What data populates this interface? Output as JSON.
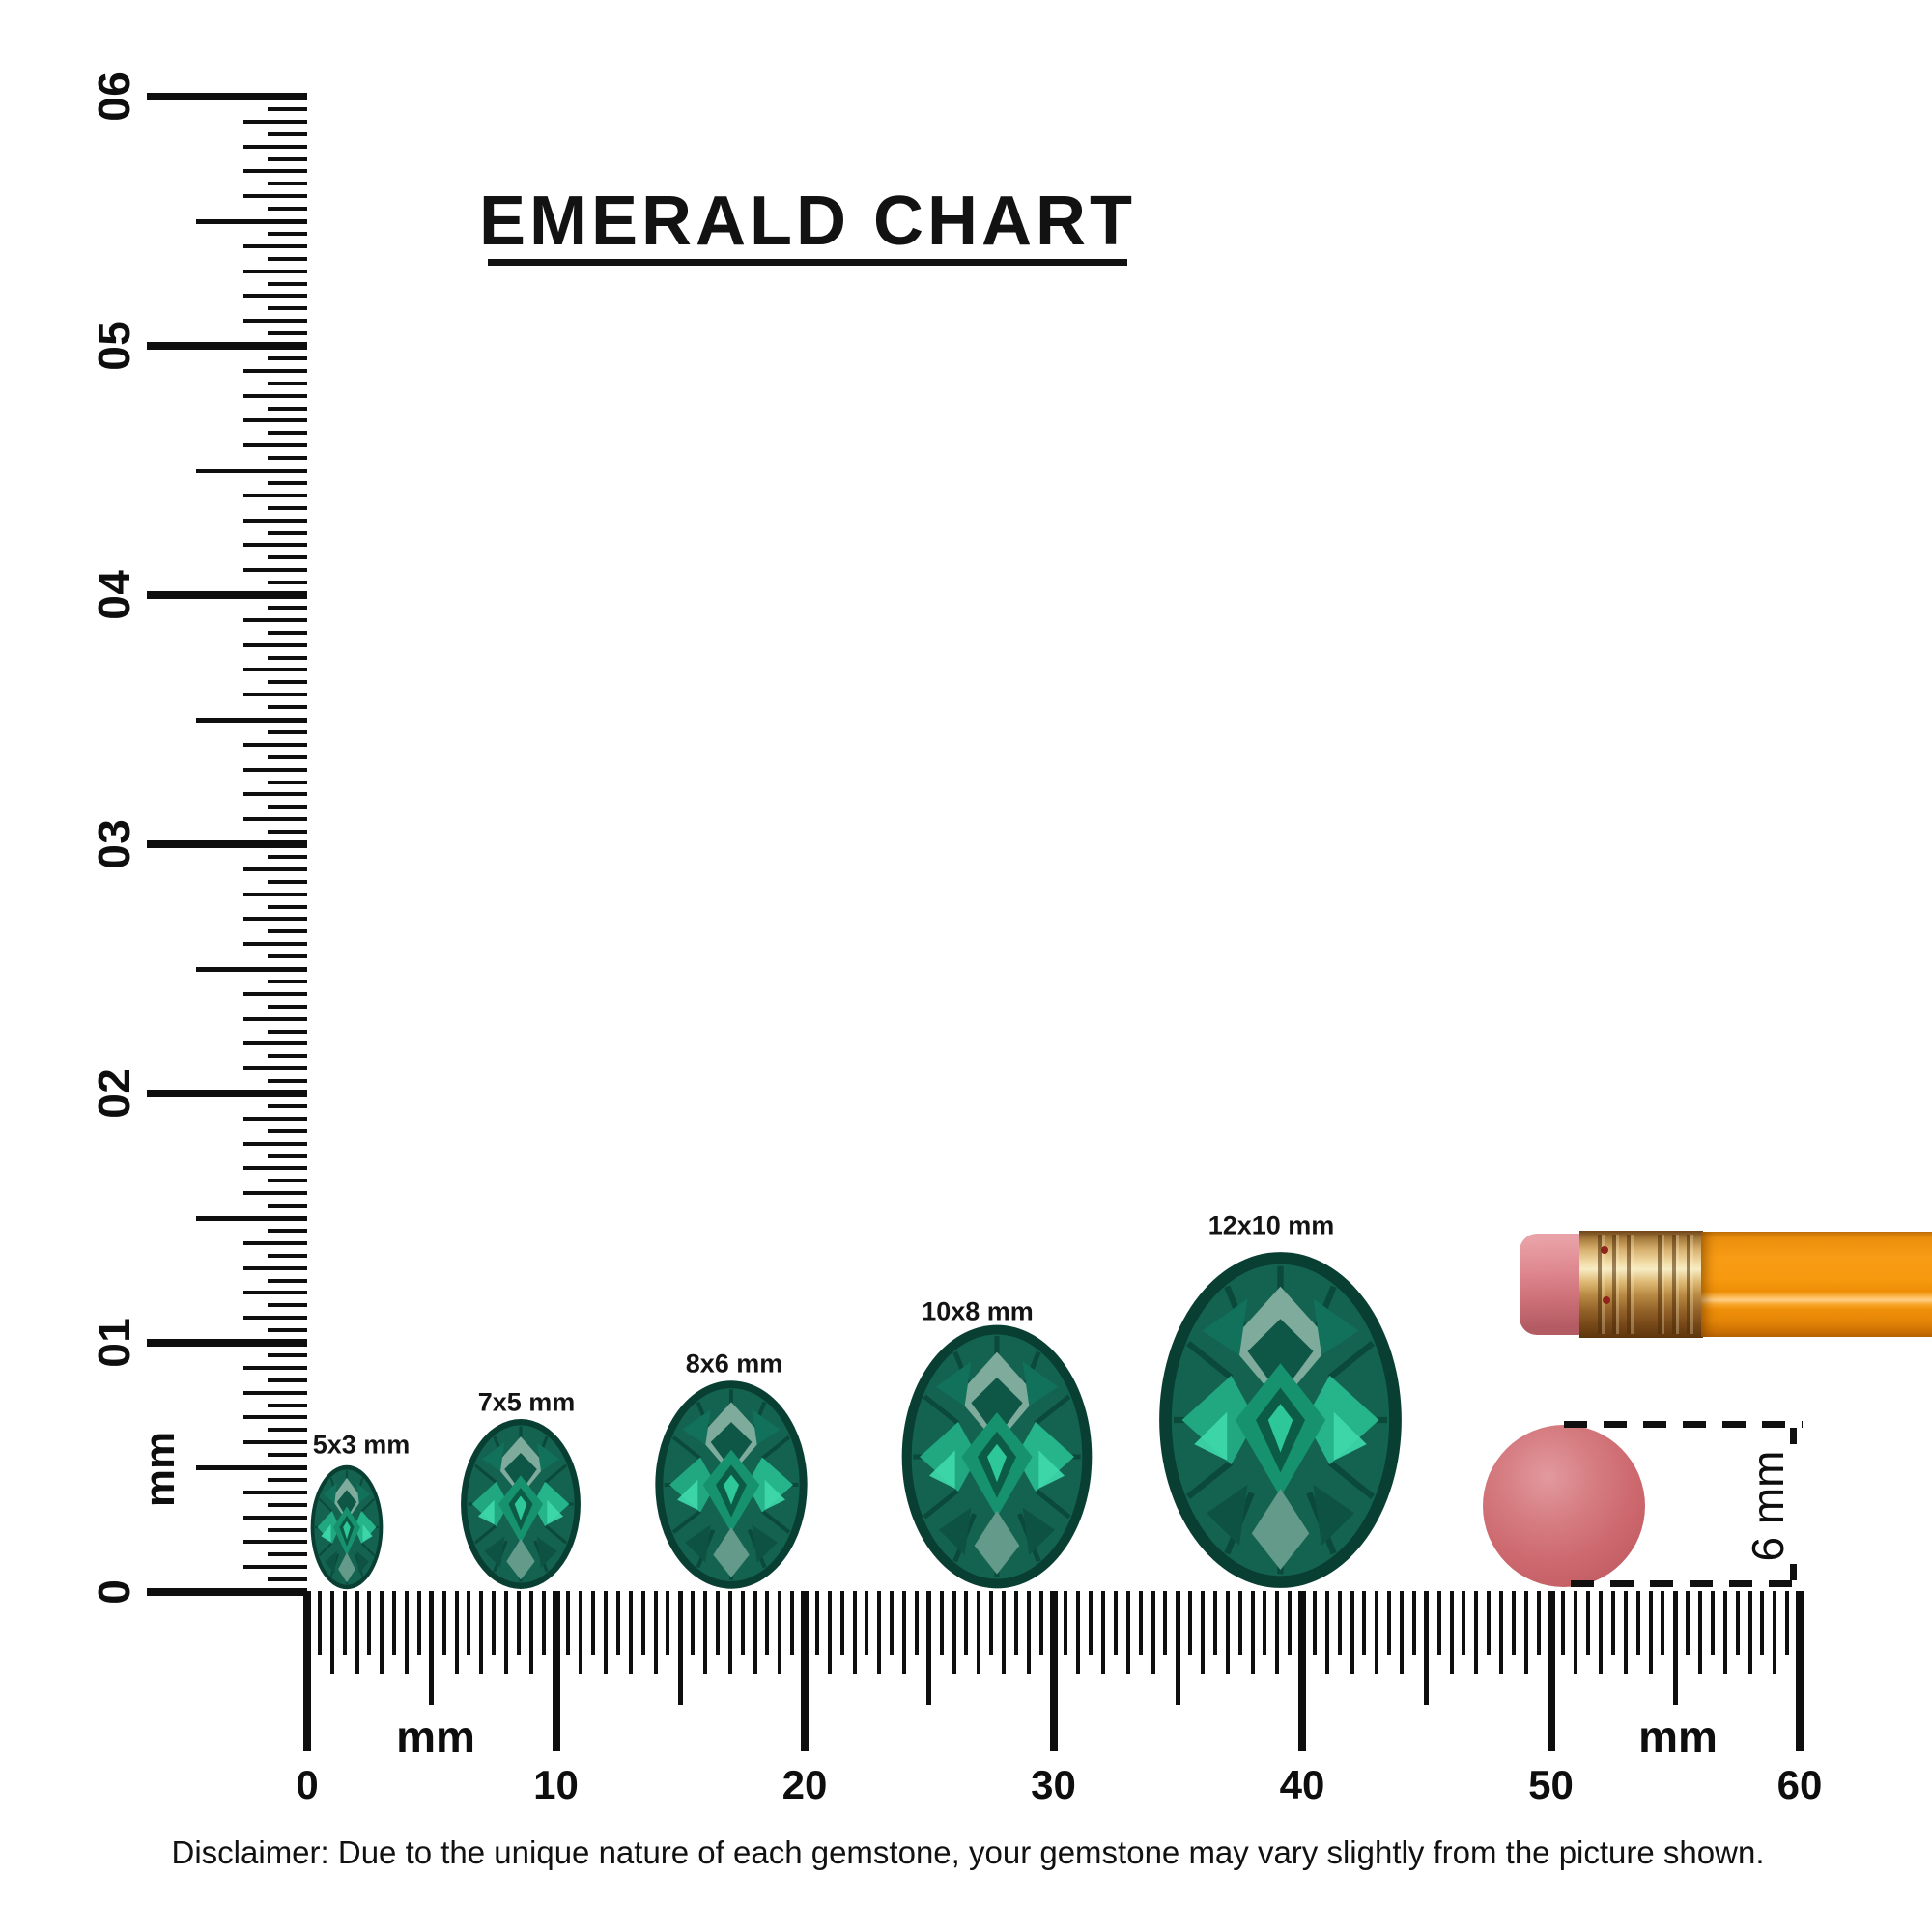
{
  "title": "EMERALD CHART",
  "rulers": {
    "unit": "mm",
    "vertical": {
      "tick_labels": [
        "60",
        "50",
        "40",
        "30",
        "20",
        "10",
        "0"
      ],
      "unit_label": "mm",
      "range_mm": [
        0,
        60
      ]
    },
    "horizontal": {
      "tick_labels": [
        "0",
        "10",
        "20",
        "30",
        "40",
        "50",
        "60"
      ],
      "unit_label_left": "mm",
      "unit_label_right": "mm",
      "range_mm": [
        0,
        60
      ]
    }
  },
  "gems": [
    {
      "size_label": "5x3 mm",
      "length_mm": 5,
      "width_mm": 3
    },
    {
      "size_label": "7x5 mm",
      "length_mm": 7,
      "width_mm": 5
    },
    {
      "size_label": "8x6 mm",
      "length_mm": 8,
      "width_mm": 6
    },
    {
      "size_label": "10x8 mm",
      "length_mm": 10,
      "width_mm": 8
    },
    {
      "size_label": "12x10 mm",
      "length_mm": 12,
      "width_mm": 10
    }
  ],
  "reference_objects": {
    "pencil": {
      "name": "pencil with eraser"
    },
    "eraser_top_view": {
      "diameter_label": "6 mm",
      "diameter_mm": 6
    }
  },
  "disclaimer": "Disclaimer: Due to the unique nature of each gemstone, your gemstone may vary slightly from the picture shown.",
  "colors": {
    "emerald_dark": "#093e32",
    "emerald_mid": "#17745d",
    "emerald_bright": "#22b389",
    "emerald_flash": "#3fd9ac",
    "emerald_pale": "#7fab9c",
    "eraser_pink": "#cc686e",
    "pencil_orange": "#f89c15",
    "ferrule_gold": "#ddb873",
    "ink": "#101010",
    "background": "#ffffff"
  }
}
